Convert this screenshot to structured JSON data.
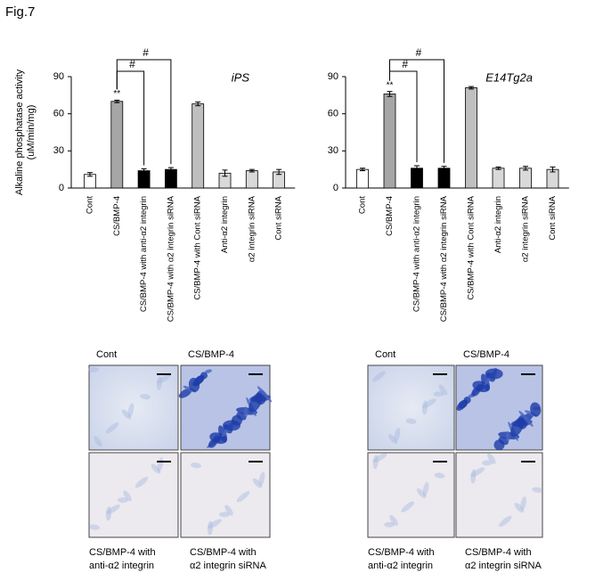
{
  "figure_label": "Fig.7",
  "chart_data": [
    {
      "type": "bar",
      "title": "iPS",
      "ylabel": [
        "Alkaline phosphatase activity",
        "(uM/min/mg)"
      ],
      "categories": [
        "Cont",
        "CS/BMP-4",
        "CS/BMP-4 with anti-α2 integrin",
        "CS/BMP-4 with α2 integrin siRNA",
        "CS/BMP-4 with Cont siRNA",
        "Anti-α2 integrin",
        "α2 integrin siRNA",
        "Cont siRNA"
      ],
      "values": [
        11,
        70,
        14,
        15,
        68,
        12,
        14,
        13
      ],
      "errors": [
        1.5,
        1,
        1.5,
        1.5,
        1.5,
        2.5,
        1,
        2
      ],
      "colors": [
        "#ffffff",
        "#a6a6a6",
        "#000000",
        "#000000",
        "#bfbfbf",
        "#d9d9d9",
        "#d9d9d9",
        "#d9d9d9"
      ],
      "ylim": [
        0,
        90
      ],
      "yticks": [
        0,
        30,
        60,
        90
      ],
      "significance": "**",
      "comparisons": [
        "#",
        "#"
      ]
    },
    {
      "type": "bar",
      "title": "E14Tg2a",
      "categories": [
        "Cont",
        "CS/BMP-4",
        "CS/BMP-4 with anti-α2 integrin",
        "CS/BMP-4 with α2 integrin siRNA",
        "CS/BMP-4 with Cont siRNA",
        "Anti-α2 integrin",
        "α2 integrin siRNA",
        "Cont siRNA"
      ],
      "values": [
        15,
        76,
        16,
        16,
        81,
        16,
        16,
        15
      ],
      "errors": [
        1,
        2,
        2,
        1.5,
        1,
        1,
        1.5,
        2
      ],
      "colors": [
        "#ffffff",
        "#a6a6a6",
        "#000000",
        "#000000",
        "#bfbfbf",
        "#d9d9d9",
        "#d9d9d9",
        "#d9d9d9"
      ],
      "ylim": [
        0,
        90
      ],
      "yticks": [
        0,
        30,
        60,
        90
      ],
      "significance": "**",
      "comparisons": [
        "#",
        "#"
      ]
    }
  ],
  "micrographs": [
    {
      "top_labels": [
        "Cont",
        "CS/BMP-4"
      ],
      "bottom_labels": [
        [
          "CS/BMP-4 with",
          "anti-α2 integrin"
        ],
        [
          "CS/BMP-4 with",
          "α2 integrin siRNA"
        ]
      ]
    },
    {
      "top_labels": [
        "Cont",
        "CS/BMP-4"
      ],
      "bottom_labels": [
        [
          "CS/BMP-4 with",
          "anti-α2 integrin"
        ],
        [
          "CS/BMP-4 with",
          "α2 integrin siRNA"
        ]
      ]
    }
  ]
}
